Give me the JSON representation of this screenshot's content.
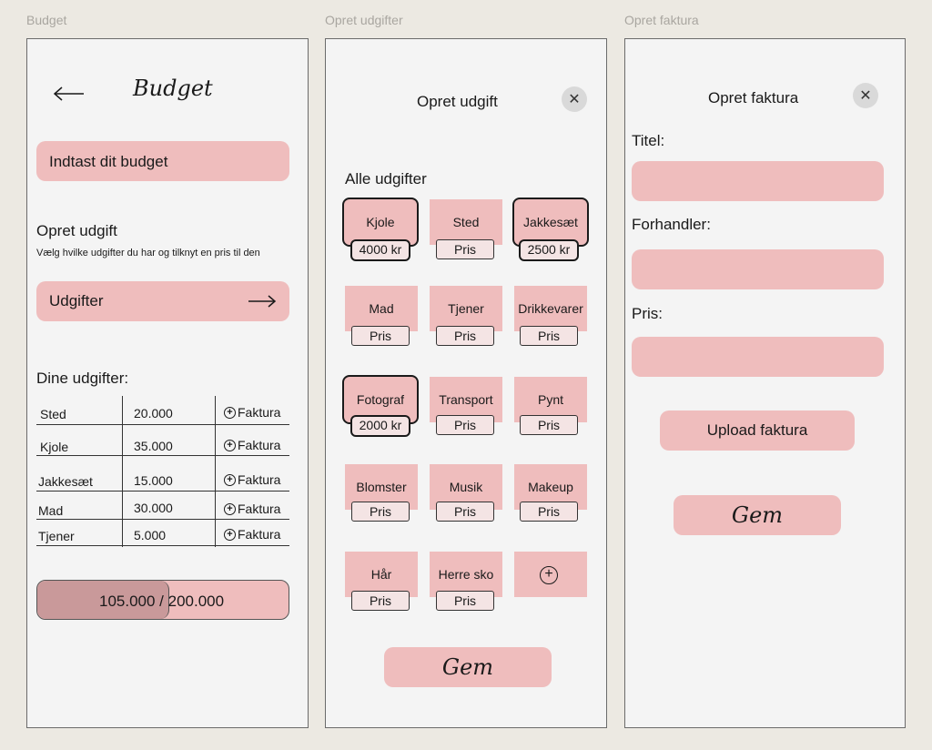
{
  "frames": {
    "budget": "Budget",
    "udgift": "Opret udgifter",
    "faktura": "Opret faktura"
  },
  "budget": {
    "title": "Budget",
    "input_label": "Indtast dit budget",
    "opret_heading": "Opret udgift",
    "opret_sub": "Vælg hvilke udgifter du har og tilknyt en pris til den",
    "udgifter_label": "Udgifter",
    "dine_heading": "Dine udgifter:",
    "rows": [
      {
        "name": "Sted",
        "amount": "20.000",
        "action": "Faktura"
      },
      {
        "name": "Kjole",
        "amount": "35.000",
        "action": "Faktura"
      },
      {
        "name": "Jakkesæt",
        "amount": "15.000",
        "action": "Faktura"
      },
      {
        "name": "Mad",
        "amount": "30.000",
        "action": "Faktura"
      },
      {
        "name": "Tjener",
        "amount": "5.000",
        "action": "Faktura"
      }
    ],
    "progress_text": "105.000 / 200.000",
    "progress_fraction": 0.525
  },
  "udgift": {
    "title": "Opret udgift",
    "alle_heading": "Alle udgifter",
    "tiles": [
      {
        "label": "Kjole",
        "price": "4000 kr",
        "selected": true
      },
      {
        "label": "Sted",
        "price": "Pris",
        "selected": false
      },
      {
        "label": "Jakkesæt",
        "price": "2500 kr",
        "selected": true
      },
      {
        "label": "Mad",
        "price": "Pris",
        "selected": false
      },
      {
        "label": "Tjener",
        "price": "Pris",
        "selected": false
      },
      {
        "label": "Drikkevarer",
        "price": "Pris",
        "selected": false
      },
      {
        "label": "Fotograf",
        "price": "2000 kr",
        "selected": true
      },
      {
        "label": "Transport",
        "price": "Pris",
        "selected": false
      },
      {
        "label": "Pynt",
        "price": "Pris",
        "selected": false
      },
      {
        "label": "Blomster",
        "price": "Pris",
        "selected": false
      },
      {
        "label": "Musik",
        "price": "Pris",
        "selected": false
      },
      {
        "label": "Makeup",
        "price": "Pris",
        "selected": false
      },
      {
        "label": "Hår",
        "price": "Pris",
        "selected": false
      },
      {
        "label": "Herre sko",
        "price": "Pris",
        "selected": false
      }
    ],
    "save_label": "Gem"
  },
  "faktura": {
    "title": "Opret faktura",
    "titel_label": "Titel:",
    "forhandler_label": "Forhandler:",
    "pris_label": "Pris:",
    "upload_label": "Upload faktura",
    "save_label": "Gem"
  },
  "colors": {
    "background": "#ece9e2",
    "frame": "#f4f4f4",
    "accent_pink": "#efbdbd",
    "progress_fill": "#c9999a"
  }
}
